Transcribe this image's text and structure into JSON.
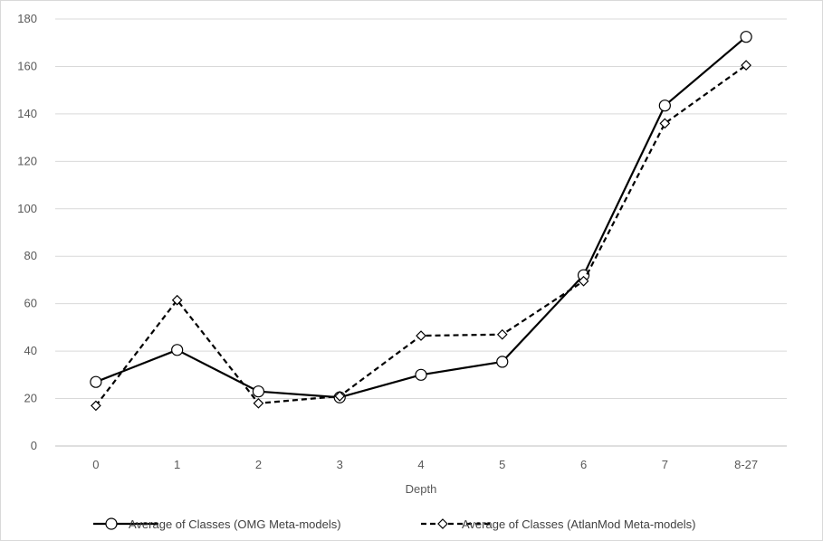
{
  "chart_data": {
    "type": "line",
    "title": "",
    "xlabel": "Depth",
    "ylabel": "",
    "categories": [
      "0",
      "1",
      "2",
      "3",
      "4",
      "5",
      "6",
      "7",
      "8-27"
    ],
    "ylim": [
      0,
      180
    ],
    "yticks": [
      0,
      20,
      40,
      60,
      80,
      100,
      120,
      140,
      160,
      180
    ],
    "grid": "horizontal",
    "legend_position": "bottom",
    "series": [
      {
        "name": "Average of Classes (OMG Meta-models)",
        "values": [
          27,
          40.5,
          23,
          20.5,
          30,
          35.5,
          72,
          143.5,
          172.5
        ],
        "line_style": "solid",
        "marker": "circle",
        "color": "#000000"
      },
      {
        "name": "Average of Classes (AtlanMod Meta-models)",
        "values": [
          17,
          61.5,
          18,
          21,
          46.5,
          47,
          69.5,
          136,
          160.5
        ],
        "line_style": "dashed",
        "marker": "diamond",
        "color": "#000000"
      }
    ]
  }
}
